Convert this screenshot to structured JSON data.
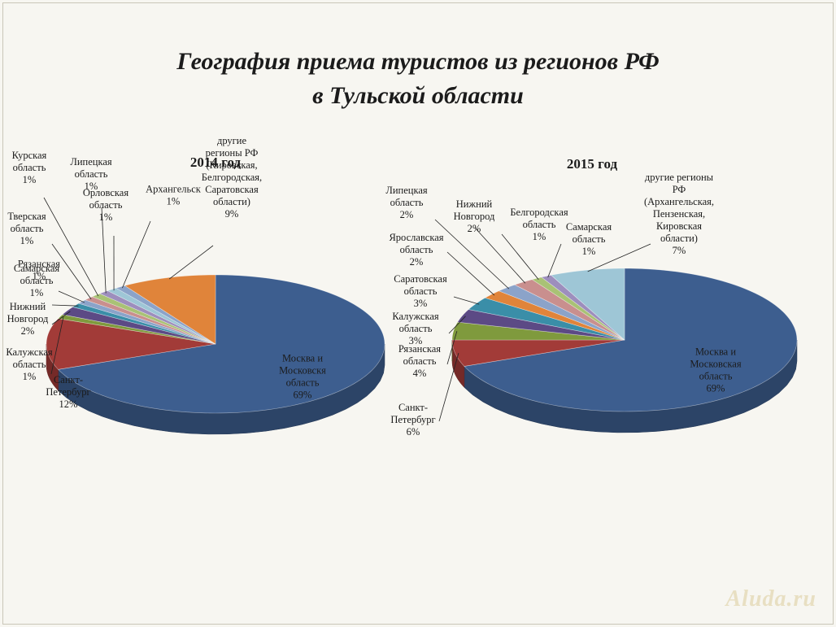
{
  "title": {
    "line1": "География приема туристов из регионов РФ",
    "line2": "в Тульской области"
  },
  "colors": {
    "moscow": "#3d5e8f",
    "spb": "#a23b38",
    "green": "#7f9a3d",
    "purple": "#5c4a85",
    "teal": "#3a8ea8",
    "orange": "#e0843a",
    "steel": "#8ba3c9",
    "pink": "#c98f8e",
    "lightgreen": "#a9c275",
    "lavender": "#9d8ebd",
    "skyblue": "#9ec6d6"
  },
  "chart_data": [
    {
      "type": "pie",
      "title": "2014 год",
      "series": [
        {
          "label_lines": [
            "Москва и",
            "Московскя",
            "область",
            "69%"
          ],
          "value": 69,
          "color": "moscow"
        },
        {
          "label_lines": [
            "Санкт-",
            "Петербург",
            "12%"
          ],
          "value": 12,
          "color": "spb"
        },
        {
          "label_lines": [
            "Калужская",
            "область",
            "1%"
          ],
          "value": 1,
          "color": "green"
        },
        {
          "label_lines": [
            "Нижний",
            "Новгород",
            "2%"
          ],
          "value": 2,
          "color": "purple"
        },
        {
          "label_lines": [
            "Самарская",
            "область",
            "1%"
          ],
          "value": 1,
          "color": "teal"
        },
        {
          "label_lines": [
            "Рязанская",
            "1%"
          ],
          "value": 1,
          "color": "steel"
        },
        {
          "label_lines": [
            "Тверская",
            "область",
            "1%"
          ],
          "value": 1,
          "color": "pink"
        },
        {
          "label_lines": [
            "Курская",
            "область",
            "1%"
          ],
          "value": 1,
          "color": "lightgreen"
        },
        {
          "label_lines": [
            "Липецкая",
            "область",
            "1%"
          ],
          "value": 1,
          "color": "lavender"
        },
        {
          "label_lines": [
            "Орловская",
            "область",
            "1%"
          ],
          "value": 1,
          "color": "skyblue"
        },
        {
          "label_lines": [
            "Архангельск",
            "1%"
          ],
          "value": 1,
          "color": "steel"
        },
        {
          "label_lines": [
            "другие",
            "регионы РФ",
            "(Кировская,",
            "Белгородская,",
            "Саратовская",
            "области)",
            "9%"
          ],
          "value": 9,
          "color": "orange"
        }
      ]
    },
    {
      "type": "pie",
      "title": "2015 год",
      "series": [
        {
          "label_lines": [
            "Москва и",
            "Московская",
            "область",
            "69%"
          ],
          "value": 69,
          "color": "moscow"
        },
        {
          "label_lines": [
            "Санкт-",
            "Петербург",
            "6%"
          ],
          "value": 6,
          "color": "spb"
        },
        {
          "label_lines": [
            "Рязанская",
            "область",
            "4%"
          ],
          "value": 4,
          "color": "green"
        },
        {
          "label_lines": [
            "Калужская",
            "область",
            "3%"
          ],
          "value": 3,
          "color": "purple"
        },
        {
          "label_lines": [
            "Саратовская",
            "область",
            "3%"
          ],
          "value": 3,
          "color": "teal"
        },
        {
          "label_lines": [
            "Ярославская",
            "область",
            "2%"
          ],
          "value": 2,
          "color": "orange"
        },
        {
          "label_lines": [
            "Липецкая",
            "область",
            "2%"
          ],
          "value": 2,
          "color": "steel"
        },
        {
          "label_lines": [
            "Нижний",
            "Новгород",
            "2%"
          ],
          "value": 2,
          "color": "pink"
        },
        {
          "label_lines": [
            "Белгородская",
            "область",
            "1%"
          ],
          "value": 1,
          "color": "lightgreen"
        },
        {
          "label_lines": [
            "Самарская",
            "область",
            "1%"
          ],
          "value": 1,
          "color": "lavender"
        },
        {
          "label_lines": [
            "другие регионы",
            "РФ",
            "(Архангельская,",
            "Пензенская,",
            "Кировская",
            "области)",
            "7%"
          ],
          "value": 7,
          "color": "skyblue"
        }
      ]
    }
  ],
  "watermark": "Aluda.ru"
}
